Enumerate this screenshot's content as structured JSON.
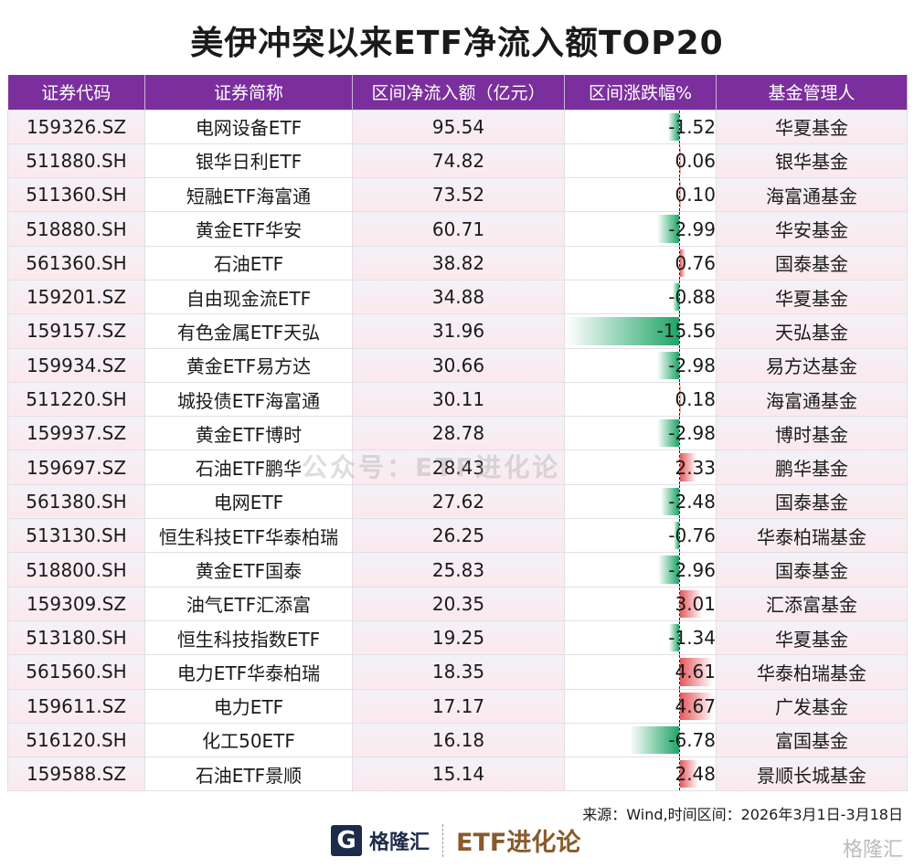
{
  "title": "美伊冲突以来ETF净流入额TOP20",
  "headers": [
    "证券代码",
    "证券简称",
    "区间净流入额（亿元）",
    "区间涨跌幅%",
    "基金管理人"
  ],
  "rows": [
    [
      "159326.SZ",
      "电网设备ETF",
      "95.54",
      "-1.52",
      "华夏基金"
    ],
    [
      "511880.SH",
      "银华日利ETF",
      "74.82",
      "0.06",
      "银华基金"
    ],
    [
      "511360.SH",
      "短融ETF海富通",
      "73.52",
      "0.10",
      "海富通基金"
    ],
    [
      "518880.SH",
      "黄金ETF华安",
      "60.71",
      "-2.99",
      "华安基金"
    ],
    [
      "561360.SH",
      "石油ETF",
      "38.82",
      "0.76",
      "国泰基金"
    ],
    [
      "159201.SZ",
      "自由现金流ETF",
      "34.88",
      "-0.88",
      "华夏基金"
    ],
    [
      "159157.SZ",
      "有色金属ETF天弘",
      "31.96",
      "-15.56",
      "天弘基金"
    ],
    [
      "159934.SZ",
      "黄金ETF易方达",
      "30.66",
      "-2.98",
      "易方达基金"
    ],
    [
      "511220.SH",
      "城投债ETF海富通",
      "30.11",
      "0.18",
      "海富通基金"
    ],
    [
      "159937.SZ",
      "黄金ETF博时",
      "28.78",
      "-2.98",
      "博时基金"
    ],
    [
      "159697.SZ",
      "石油ETF鹏华",
      "28.43",
      "2.33",
      "鹏华基金"
    ],
    [
      "561380.SH",
      "电网ETF",
      "27.62",
      "-2.48",
      "国泰基金"
    ],
    [
      "513130.SH",
      "恒生科技ETF华泰柏瑞",
      "26.25",
      "-0.76",
      "华泰柏瑞基金"
    ],
    [
      "518800.SH",
      "黄金ETF国泰",
      "25.83",
      "-2.96",
      "国泰基金"
    ],
    [
      "159309.SZ",
      "油气ETF汇添富",
      "20.35",
      "3.01",
      "汇添富基金"
    ],
    [
      "513180.SH",
      "恒生科技指数ETF",
      "19.25",
      "-1.34",
      "华夏基金"
    ],
    [
      "561560.SH",
      "电力ETF华泰柏瑞",
      "18.35",
      "4.61",
      "华泰柏瑞基金"
    ],
    [
      "159611.SZ",
      "电力ETF",
      "17.17",
      "4.67",
      "广发基金"
    ],
    [
      "516120.SH",
      "化工50ETF",
      "16.18",
      "-6.78",
      "富国基金"
    ],
    [
      "159588.SZ",
      "石油ETF景顺",
      "15.14",
      "2.48",
      "景顺长城基金"
    ]
  ],
  "source": "来源：Wind,时间区间：2026年3月1日-3月18日",
  "watermark": "公众号：ETF进化论",
  "logo": {
    "brand": "格隆汇",
    "url": "www.gelonghui.com",
    "etf": "ETF进化论",
    "corner": "格隆汇"
  },
  "colors": {
    "header": "#7b2f9c",
    "negative": "#1fa566",
    "positive": "#e5595d"
  }
}
